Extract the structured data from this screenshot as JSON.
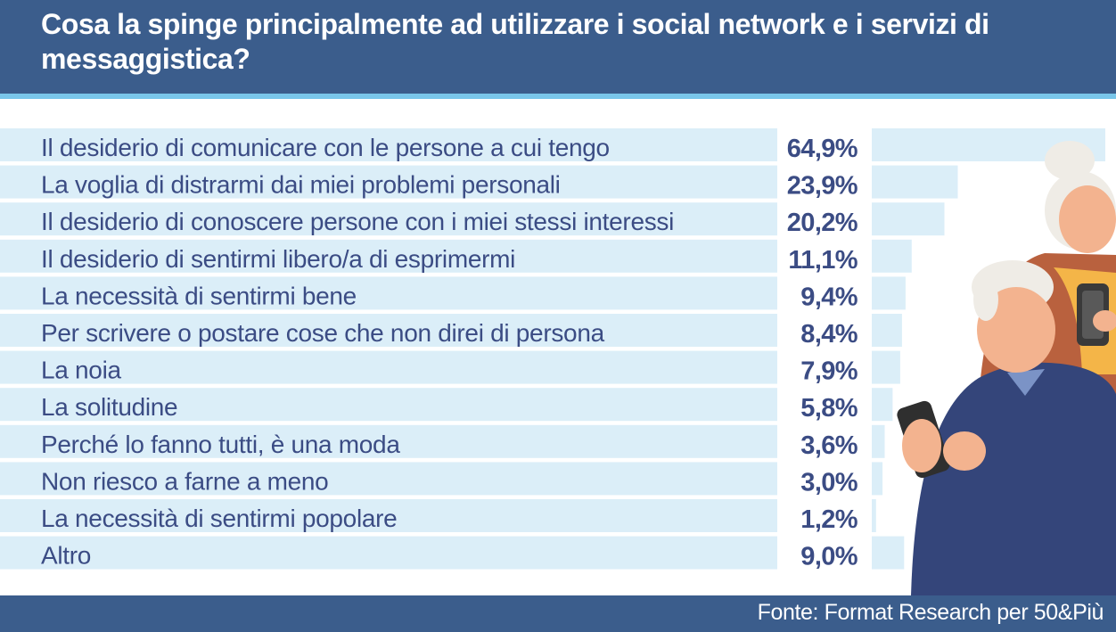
{
  "title": "Cosa la spinge principalmente ad utilizzare i social network e i servizi di messaggistica?",
  "source": "Fonte: Format Research per 50&Più",
  "colors": {
    "header_bg": "#3b5d8c",
    "header_rule": "#79c6ea",
    "row_band": "#dbeef8",
    "text": "#3b4c84"
  },
  "illustration": "elderly-couple-using-smartphones",
  "chart_data": {
    "type": "bar",
    "orientation": "horizontal",
    "categories": [
      "Il desiderio di comunicare con le persone a cui tengo",
      "La voglia di distrarmi dai miei problemi personali",
      "Il desiderio di conoscere persone con i miei stessi interessi",
      "Il desiderio di sentirmi libero/a di esprimermi",
      "La necessità di sentirmi bene",
      "Per scrivere o postare cose che non direi di persona",
      "La noia",
      "La solitudine",
      "Perché lo fanno tutti, è una moda",
      "Non riesco a farne a meno",
      "La necessità di sentirmi popolare",
      "Altro"
    ],
    "values": [
      64.9,
      23.9,
      20.2,
      11.1,
      9.4,
      8.4,
      7.9,
      5.8,
      3.6,
      3.0,
      1.2,
      9.0
    ],
    "value_labels": [
      "64,9%",
      "23,9%",
      "20,2%",
      "11,1%",
      "9,4%",
      "8,4%",
      "7,9%",
      "5,8%",
      "3,6%",
      "3,0%",
      "1,2%",
      "9,0%"
    ],
    "unit": "%",
    "xlim": [
      0,
      64.9
    ],
    "grid": false,
    "legend": "none"
  }
}
